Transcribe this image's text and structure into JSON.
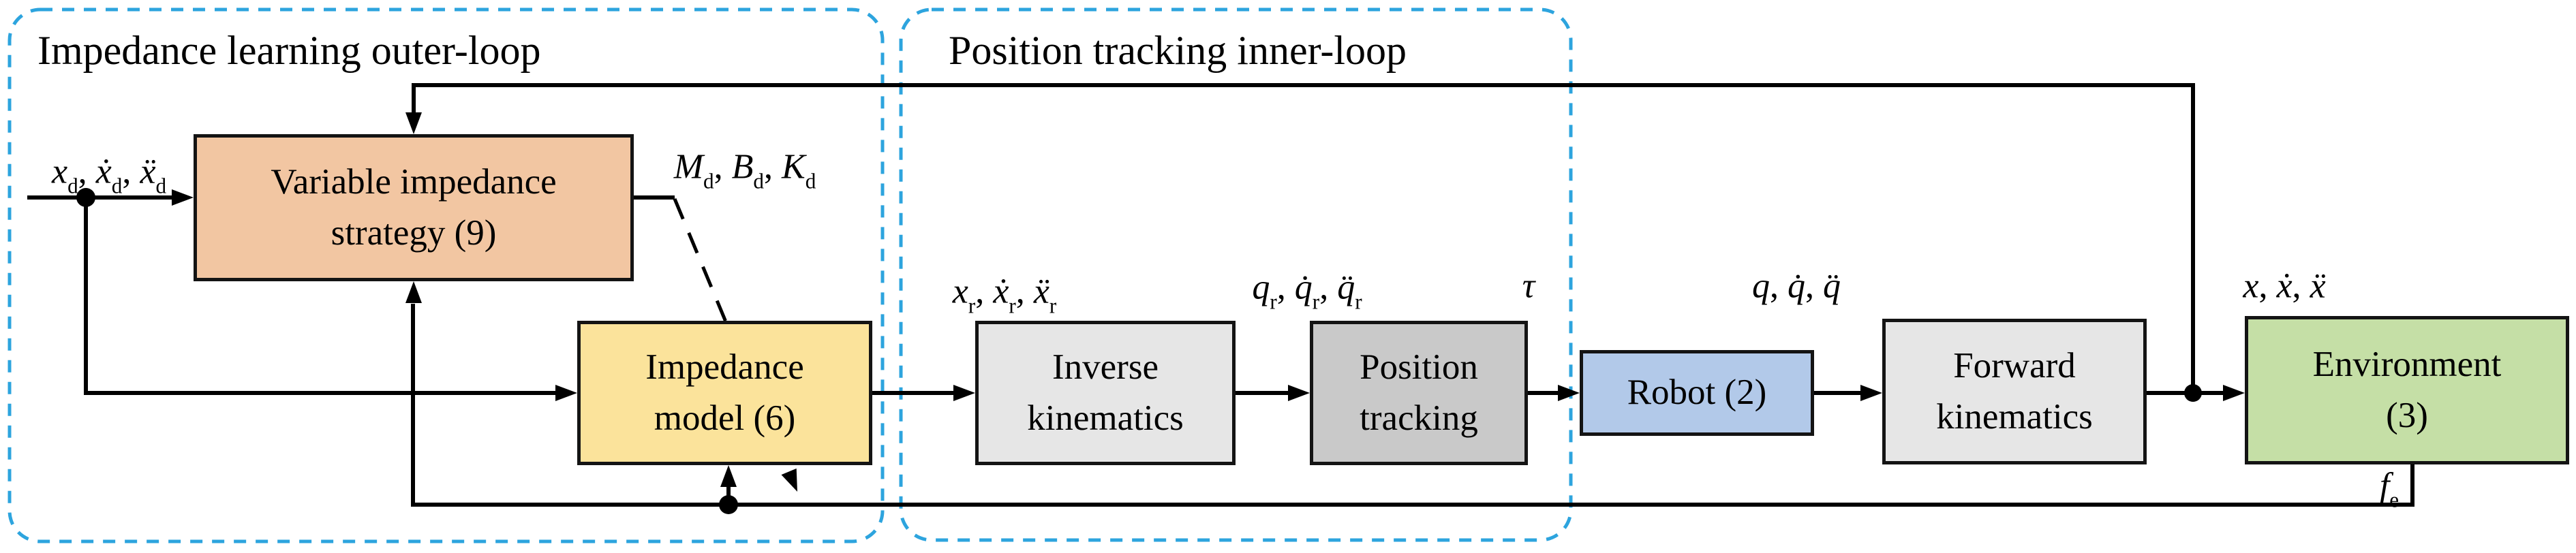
{
  "diagram": {
    "outer_loop_title": "Impedance learning outer-loop",
    "inner_loop_title": "Position tracking inner-loop"
  },
  "blocks": {
    "strategy": {
      "lines": [
        "Variable impedance",
        "strategy (9)"
      ],
      "fill": "#f2c6a2"
    },
    "impedance_model": {
      "lines": [
        "Impedance",
        "model (6)"
      ],
      "fill": "#fbe39b"
    },
    "inverse_kinematics": {
      "lines": [
        "Inverse",
        "kinematics"
      ],
      "fill": "#e6e6e6"
    },
    "position_tracking": {
      "lines": [
        "Position",
        "tracking"
      ],
      "fill": "#c9c9c9"
    },
    "robot": {
      "lines": [
        "Robot (2)"
      ],
      "fill": "#b2c9e9"
    },
    "forward_kinematics": {
      "lines": [
        "Forward",
        "kinematics"
      ],
      "fill": "#e6e6e6"
    },
    "environment": {
      "lines": [
        "Environment",
        "(3)"
      ],
      "fill": "#c5dfa6"
    }
  },
  "signals": {
    "desired_trajectory": [
      {
        "b": "x",
        "s": "d",
        "sep": ", "
      },
      {
        "b": "ẋ",
        "s": "d",
        "sep": ", "
      },
      {
        "b": "ẍ",
        "s": "d",
        "sep": ""
      }
    ],
    "impedance_params": [
      {
        "b": "M",
        "s": "d",
        "sep": ", "
      },
      {
        "b": "B",
        "s": "d",
        "sep": ", "
      },
      {
        "b": "K",
        "s": "d",
        "sep": ""
      }
    ],
    "reference_task": [
      {
        "b": "x",
        "s": "r",
        "sep": ", "
      },
      {
        "b": "ẋ",
        "s": "r",
        "sep": ", "
      },
      {
        "b": "ẍ",
        "s": "r",
        "sep": ""
      }
    ],
    "reference_joint": [
      {
        "b": "q",
        "s": "r",
        "sep": ", "
      },
      {
        "b": "q̇",
        "s": "r",
        "sep": ", "
      },
      {
        "b": "q̈",
        "s": "r",
        "sep": ""
      }
    ],
    "torque": [
      {
        "b": "τ",
        "s": "",
        "sep": ""
      }
    ],
    "joint_state": [
      {
        "b": "q",
        "s": "",
        "sep": ", "
      },
      {
        "b": "q̇",
        "s": "",
        "sep": ", "
      },
      {
        "b": "q̈",
        "s": "",
        "sep": ""
      }
    ],
    "task_state": [
      {
        "b": "x",
        "s": "",
        "sep": ", "
      },
      {
        "b": "ẋ",
        "s": "",
        "sep": ", "
      },
      {
        "b": "ẍ",
        "s": "",
        "sep": ""
      }
    ],
    "contact_force": [
      {
        "b": "f",
        "s": "e",
        "sep": ""
      }
    ]
  },
  "palette": {
    "loop_box_dash": "#2da4de",
    "connector_line": "#000000",
    "block_border": "#141414",
    "background": "#ffffff"
  }
}
